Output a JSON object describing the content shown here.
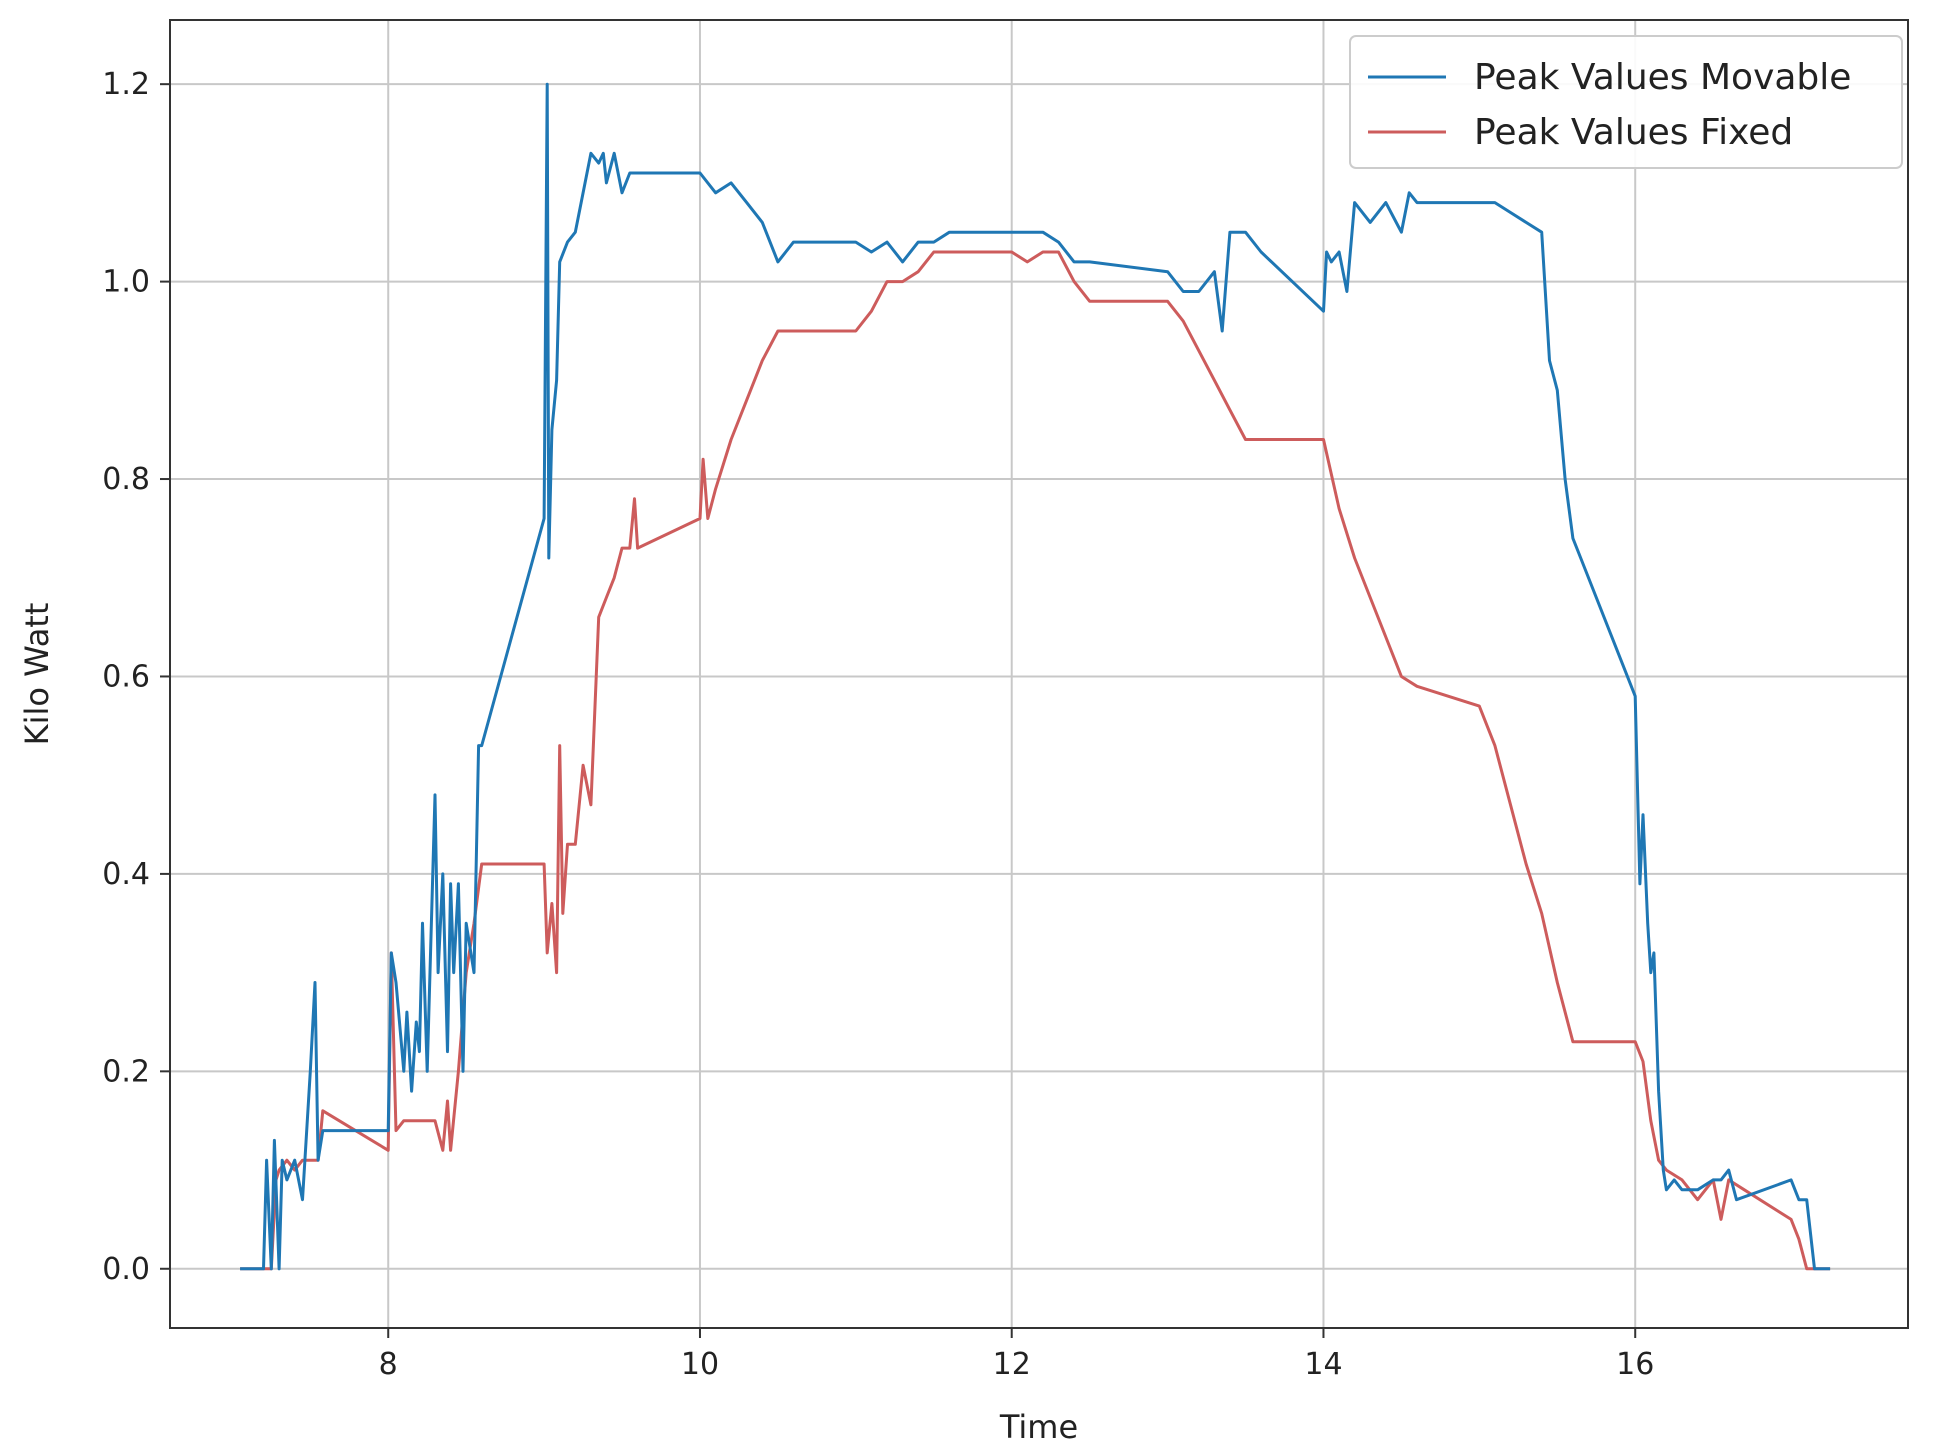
{
  "chart_data": {
    "type": "line",
    "title": "",
    "xlabel": "Time",
    "ylabel": "Kilo Watt",
    "xlim": [
      6.6,
      17.75
    ],
    "ylim": [
      -0.06,
      1.265
    ],
    "xticks": [
      8,
      10,
      12,
      14,
      16
    ],
    "yticks": [
      0.0,
      0.2,
      0.4,
      0.6,
      0.8,
      1.0,
      1.2
    ],
    "xtick_labels": [
      "8",
      "10",
      "12",
      "14",
      "16"
    ],
    "ytick_labels": [
      "0.0",
      "0.2",
      "0.4",
      "0.6",
      "0.8",
      "1.0",
      "1.2"
    ],
    "grid": true,
    "legend_position": "top-right",
    "series": [
      {
        "name": "Peak Values Movable",
        "color": "#1f77b4",
        "x": [
          7.05,
          7.2,
          7.22,
          7.25,
          7.27,
          7.3,
          7.32,
          7.35,
          7.4,
          7.45,
          7.5,
          7.53,
          7.55,
          7.58,
          7.6,
          8.0,
          8.02,
          8.05,
          8.1,
          8.12,
          8.15,
          8.18,
          8.2,
          8.22,
          8.25,
          8.3,
          8.32,
          8.35,
          8.38,
          8.4,
          8.42,
          8.45,
          8.48,
          8.5,
          8.55,
          8.58,
          8.6,
          9.0,
          9.02,
          9.03,
          9.05,
          9.08,
          9.1,
          9.15,
          9.2,
          9.3,
          9.35,
          9.38,
          9.4,
          9.45,
          9.5,
          9.55,
          9.6,
          10.0,
          10.1,
          10.2,
          10.3,
          10.4,
          10.5,
          10.55,
          10.6,
          10.7,
          11.0,
          11.1,
          11.2,
          11.3,
          11.4,
          11.5,
          11.6,
          11.7,
          12.0,
          12.1,
          12.2,
          12.3,
          12.4,
          12.5,
          13.0,
          13.1,
          13.2,
          13.3,
          13.35,
          13.4,
          13.45,
          13.5,
          13.6,
          14.0,
          14.02,
          14.05,
          14.1,
          14.15,
          14.2,
          14.3,
          14.4,
          14.5,
          14.55,
          14.6,
          15.0,
          15.1,
          15.2,
          15.3,
          15.4,
          15.45,
          15.5,
          15.55,
          15.6,
          15.65,
          16.0,
          16.03,
          16.05,
          16.08,
          16.1,
          16.12,
          16.15,
          16.18,
          16.2,
          16.25,
          16.3,
          16.4,
          16.5,
          16.55,
          16.6,
          16.65,
          17.0,
          17.05,
          17.1,
          17.15,
          17.25
        ],
        "y": [
          0.0,
          0.0,
          0.11,
          0.0,
          0.13,
          0.0,
          0.11,
          0.09,
          0.11,
          0.07,
          0.2,
          0.29,
          0.11,
          0.14,
          0.14,
          0.14,
          0.32,
          0.29,
          0.2,
          0.26,
          0.18,
          0.25,
          0.22,
          0.35,
          0.2,
          0.48,
          0.3,
          0.4,
          0.22,
          0.39,
          0.3,
          0.39,
          0.2,
          0.35,
          0.3,
          0.53,
          0.53,
          0.76,
          1.2,
          0.72,
          0.85,
          0.9,
          1.02,
          1.04,
          1.05,
          1.13,
          1.12,
          1.13,
          1.1,
          1.13,
          1.09,
          1.11,
          1.11,
          1.11,
          1.09,
          1.1,
          1.08,
          1.06,
          1.02,
          1.03,
          1.04,
          1.04,
          1.04,
          1.03,
          1.04,
          1.02,
          1.04,
          1.04,
          1.05,
          1.05,
          1.05,
          1.05,
          1.05,
          1.04,
          1.02,
          1.02,
          1.01,
          0.99,
          0.99,
          1.01,
          0.95,
          1.05,
          1.05,
          1.05,
          1.03,
          0.97,
          1.03,
          1.02,
          1.03,
          0.99,
          1.08,
          1.06,
          1.08,
          1.05,
          1.09,
          1.08,
          1.08,
          1.08,
          1.07,
          1.06,
          1.05,
          0.92,
          0.89,
          0.8,
          0.74,
          0.72,
          0.58,
          0.39,
          0.46,
          0.35,
          0.3,
          0.32,
          0.18,
          0.1,
          0.08,
          0.09,
          0.08,
          0.08,
          0.09,
          0.09,
          0.1,
          0.07,
          0.09,
          0.07,
          0.07,
          0.0,
          0.0
        ],
        "_unused": null
      },
      {
        "name": "Peak Values Fixed",
        "color": "#cd5c5c",
        "x": [
          7.05,
          7.25,
          7.28,
          7.3,
          7.35,
          7.4,
          7.45,
          7.5,
          7.55,
          7.58,
          8.0,
          8.02,
          8.05,
          8.1,
          8.2,
          8.3,
          8.35,
          8.38,
          8.4,
          8.45,
          8.5,
          8.55,
          8.6,
          9.0,
          9.02,
          9.05,
          9.08,
          9.1,
          9.12,
          9.15,
          9.2,
          9.25,
          9.3,
          9.35,
          9.4,
          9.45,
          9.5,
          9.55,
          9.58,
          9.6,
          10.0,
          10.02,
          10.05,
          10.1,
          10.2,
          10.3,
          10.4,
          10.5,
          10.6,
          11.0,
          11.1,
          11.2,
          11.3,
          11.4,
          11.5,
          11.6,
          12.0,
          12.1,
          12.2,
          12.3,
          12.4,
          12.5,
          13.0,
          13.1,
          13.2,
          13.3,
          13.4,
          13.5,
          13.6,
          14.0,
          14.1,
          14.2,
          14.3,
          14.4,
          14.5,
          14.6,
          15.0,
          15.05,
          15.1,
          15.2,
          15.3,
          15.4,
          15.5,
          15.6,
          15.7,
          16.0,
          16.05,
          16.1,
          16.15,
          16.2,
          16.3,
          16.4,
          16.5,
          16.55,
          16.6,
          16.7,
          17.0,
          17.05,
          17.1,
          17.25
        ],
        "y": [
          0.0,
          0.0,
          0.09,
          0.1,
          0.11,
          0.1,
          0.11,
          0.11,
          0.11,
          0.16,
          0.12,
          0.32,
          0.14,
          0.15,
          0.15,
          0.15,
          0.12,
          0.17,
          0.12,
          0.2,
          0.3,
          0.35,
          0.41,
          0.41,
          0.32,
          0.37,
          0.3,
          0.53,
          0.36,
          0.43,
          0.43,
          0.51,
          0.47,
          0.66,
          0.68,
          0.7,
          0.73,
          0.73,
          0.78,
          0.73,
          0.76,
          0.82,
          0.76,
          0.79,
          0.84,
          0.88,
          0.92,
          0.95,
          0.95,
          0.95,
          0.97,
          1.0,
          1.0,
          1.01,
          1.03,
          1.03,
          1.03,
          1.02,
          1.03,
          1.03,
          1.0,
          0.98,
          0.98,
          0.96,
          0.93,
          0.9,
          0.87,
          0.84,
          0.84,
          0.84,
          0.77,
          0.72,
          0.68,
          0.64,
          0.6,
          0.59,
          0.57,
          0.55,
          0.53,
          0.47,
          0.41,
          0.36,
          0.29,
          0.23,
          0.23,
          0.23,
          0.21,
          0.15,
          0.11,
          0.1,
          0.09,
          0.07,
          0.09,
          0.05,
          0.09,
          0.08,
          0.05,
          0.03,
          0.0,
          0.0
        ]
      }
    ]
  }
}
